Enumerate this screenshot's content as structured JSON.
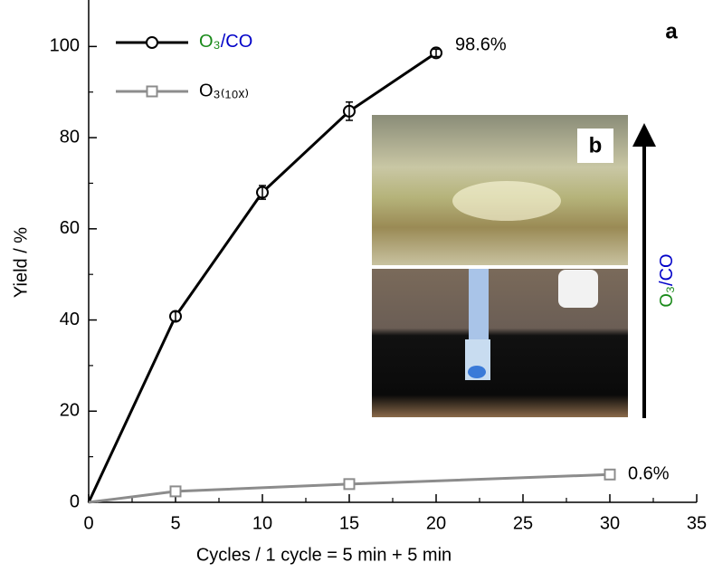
{
  "chart_data": {
    "type": "line",
    "x_label": "Cycles / 1 cycle = 5 min + 5 min",
    "y_label": "Yield / %",
    "xlim": [
      0,
      35
    ],
    "xticks": [
      0,
      5,
      10,
      15,
      20,
      25,
      30,
      35
    ],
    "ylim": [
      0,
      110
    ],
    "yticks": [
      0,
      20,
      40,
      60,
      80,
      100
    ],
    "legend": "upper left",
    "series": [
      {
        "name": "O₃/CO",
        "color": "#000000",
        "marker": "circle",
        "x": [
          0,
          5,
          10,
          15,
          20
        ],
        "values": [
          0,
          40.8,
          68,
          85.8,
          98.6
        ],
        "errors": [
          0,
          1,
          1.5,
          2,
          0.8
        ]
      },
      {
        "name": "O₃₍₁₀ₓ₎",
        "color": "#8c8c8c",
        "marker": "square",
        "x": [
          0,
          5,
          15,
          30
        ],
        "values": [
          0,
          2.4,
          4,
          6.1
        ]
      }
    ],
    "annotations": [
      "98.6%",
      "0.6%",
      "a",
      "b",
      "O₃/CO"
    ]
  }
}
